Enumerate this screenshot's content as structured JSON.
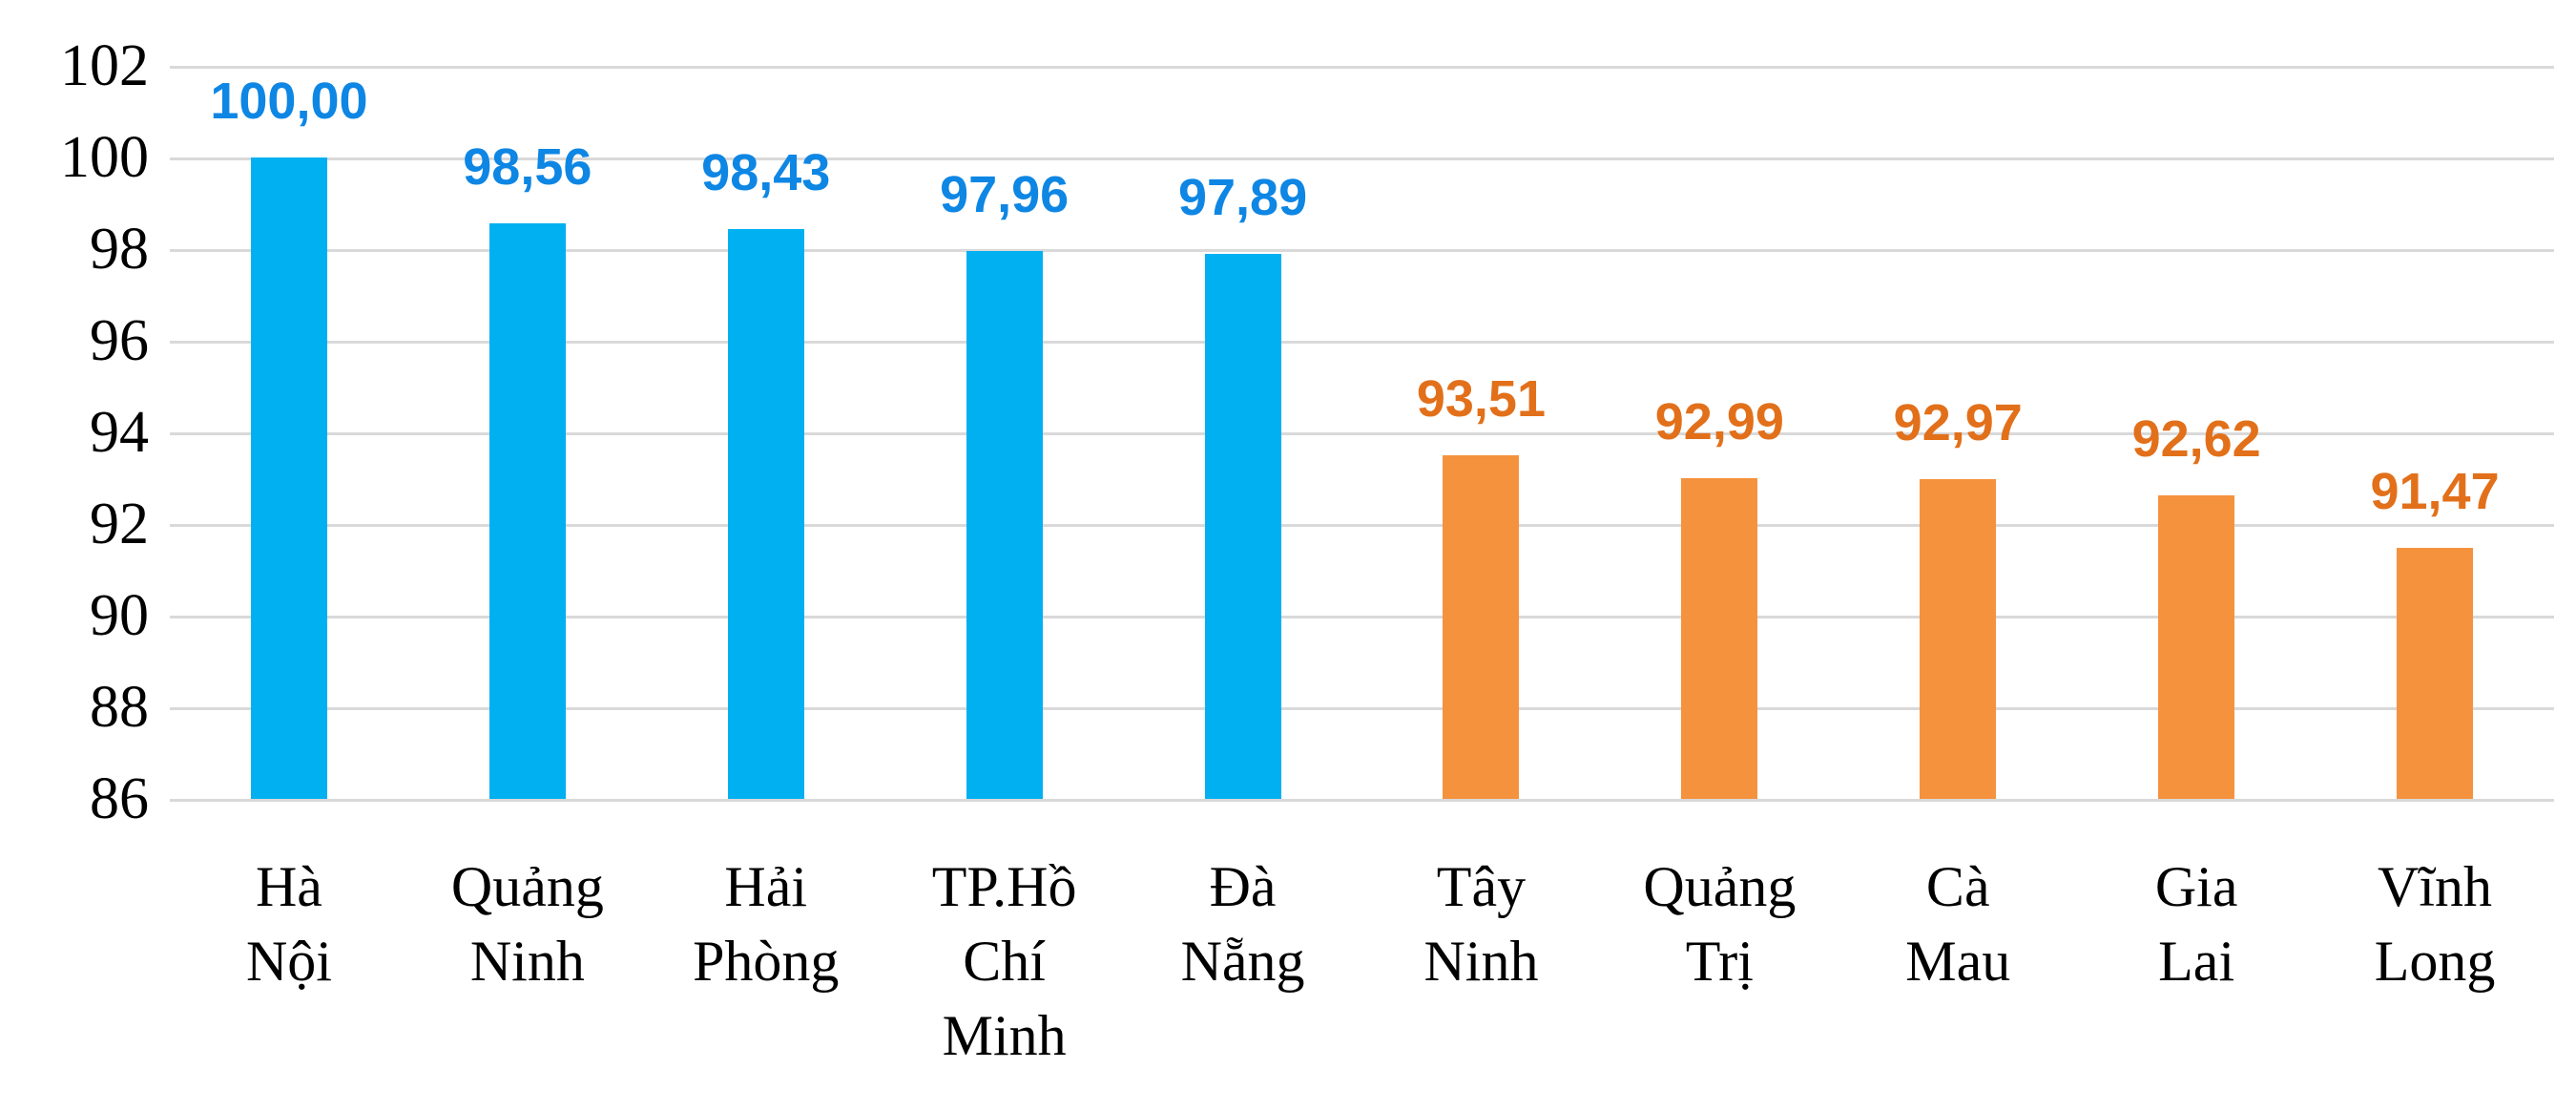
{
  "chart_data": {
    "type": "bar",
    "title": "",
    "xlabel": "",
    "ylabel": "",
    "legend": "none",
    "grid": true,
    "ylim": [
      86,
      102
    ],
    "yticks": [
      86,
      88,
      90,
      92,
      94,
      96,
      98,
      100,
      102
    ],
    "categories": [
      "Hà Nội",
      "Quảng Ninh",
      "Hải Phòng",
      "TP.Hồ Chí Minh",
      "Đà Nẵng",
      "Tây Ninh",
      "Quảng Trị",
      "Cà Mau",
      "Gia Lai",
      "Vĩnh Long"
    ],
    "category_lines": [
      [
        "Hà",
        "Nội"
      ],
      [
        "Quảng",
        "Ninh"
      ],
      [
        "Hải",
        "Phòng"
      ],
      [
        "TP.Hồ",
        "Chí",
        "Minh"
      ],
      [
        "Đà",
        "Nẵng"
      ],
      [
        "Tây",
        "Ninh"
      ],
      [
        "Quảng",
        "Trị"
      ],
      [
        "Cà",
        "Mau"
      ],
      [
        "Gia",
        "Lai"
      ],
      [
        "Vĩnh",
        "Long"
      ]
    ],
    "values": [
      100.0,
      98.56,
      98.43,
      97.96,
      97.89,
      93.51,
      92.99,
      92.97,
      92.62,
      91.47
    ],
    "value_labels": [
      "100,00",
      "98,56",
      "98,43",
      "97,96",
      "97,89",
      "93,51",
      "92,99",
      "92,97",
      "92,62",
      "91,47"
    ],
    "series_group": [
      "blue",
      "blue",
      "blue",
      "blue",
      "blue",
      "orange",
      "orange",
      "orange",
      "orange",
      "orange"
    ],
    "colors": {
      "bar_blue": "#00B0F0",
      "bar_orange": "#F5923E",
      "label_blue": "#0E86E4",
      "label_orange": "#E2701A",
      "gridline": "#D9D9D9",
      "axis_text": "#000000",
      "background": "#FFFFFF"
    }
  }
}
